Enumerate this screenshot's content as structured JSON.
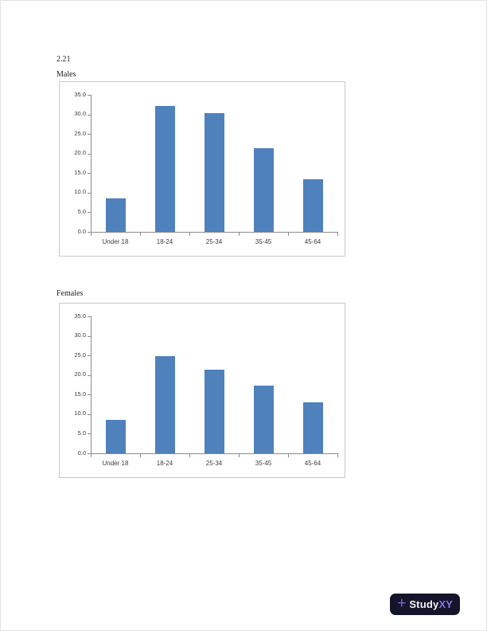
{
  "page": {
    "problem_number": "2.21"
  },
  "chart_data": [
    {
      "type": "bar",
      "title": "Males",
      "categories": [
        "Under 18",
        "18-24",
        "25-34",
        "35-45",
        "45-64"
      ],
      "values": [
        8.5,
        32.2,
        30.4,
        21.4,
        13.5
      ],
      "xlabel": "",
      "ylabel": "",
      "ylim": [
        0,
        35
      ],
      "ytick_labels": [
        "0.0",
        "5.0",
        "10.0",
        "15.0",
        "20.0",
        "25.0",
        "30.0",
        "35.0"
      ],
      "bar_color": "#4f81bd",
      "grid": false,
      "legend": false
    },
    {
      "type": "bar",
      "title": "Females",
      "categories": [
        "Under 18",
        "18-24",
        "25-34",
        "35-45",
        "45-64"
      ],
      "values": [
        8.5,
        24.9,
        21.4,
        17.2,
        13.1
      ],
      "xlabel": "",
      "ylabel": "",
      "ylim": [
        0,
        35
      ],
      "ytick_labels": [
        "0.0",
        "5.0",
        "10.0",
        "15.0",
        "20.0",
        "25.0",
        "30.0",
        "35.0"
      ],
      "bar_color": "#4f81bd",
      "grid": false,
      "legend": false
    }
  ],
  "footer": {
    "logo_plus": "+",
    "logo_text_primary": "Study",
    "logo_text_accent": "XY",
    "logo_bg": "#14152a",
    "logo_plus_color": "#7b68d8",
    "logo_text_color": "#f2f3f7",
    "logo_accent": "#8678e8"
  }
}
